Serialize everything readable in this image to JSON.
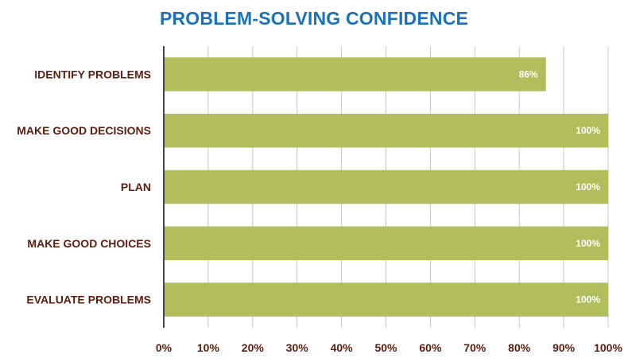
{
  "colors": {
    "title": "#1a73b8",
    "category_label": "#5e1d0f",
    "tick_label": "#5e1d0f",
    "bar": "#b2bd5c",
    "grid": "#c8c8c8",
    "axis": "#444444",
    "data_label": "#ffffff"
  },
  "chart_data": {
    "type": "bar",
    "orientation": "horizontal",
    "title": "PROBLEM-SOLVING CONFIDENCE",
    "categories": [
      "IDENTIFY PROBLEMS",
      "MAKE GOOD DECISIONS",
      "PLAN",
      "MAKE GOOD CHOICES",
      "EVALUATE PROBLEMS"
    ],
    "values": [
      86,
      100,
      100,
      100,
      100
    ],
    "data_labels": [
      "86%",
      "100%",
      "100%",
      "100%",
      "100%"
    ],
    "xlim": [
      0,
      100
    ],
    "x_ticks": [
      0,
      10,
      20,
      30,
      40,
      50,
      60,
      70,
      80,
      90,
      100
    ],
    "x_tick_labels": [
      "0%",
      "10%",
      "20%",
      "30%",
      "40%",
      "50%",
      "60%",
      "70%",
      "80%",
      "90%",
      "100%"
    ],
    "grid": true,
    "legend": "none"
  }
}
